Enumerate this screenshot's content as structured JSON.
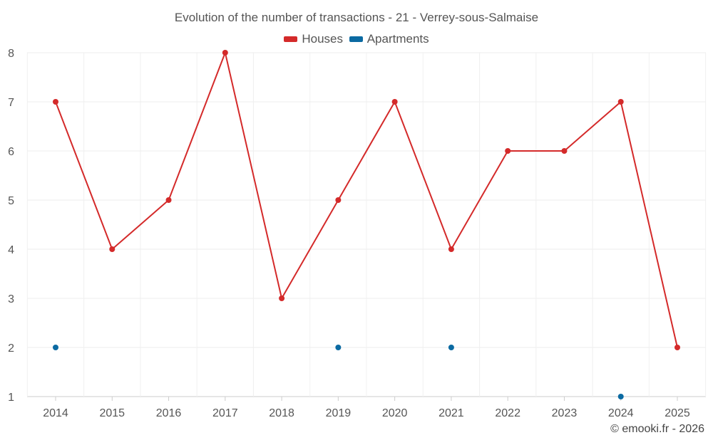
{
  "chart_data": {
    "type": "line",
    "title": "Evolution of the number of transactions - 21 - Verrey-sous-Salmaise",
    "xlabel": "",
    "ylabel": "",
    "ylim": [
      1,
      8
    ],
    "yticks": [
      "1",
      "2",
      "3",
      "4",
      "5",
      "6",
      "7",
      "8"
    ],
    "categories": [
      "2014",
      "2015",
      "2016",
      "2017",
      "2018",
      "2019",
      "2020",
      "2021",
      "2022",
      "2023",
      "2024",
      "2025"
    ],
    "grid": true,
    "legend_position": "top-center",
    "series": [
      {
        "name": "Houses",
        "color": "#d42a2a",
        "line": true,
        "values": [
          7,
          4,
          5,
          8,
          3,
          5,
          7,
          4,
          6,
          6,
          7,
          2
        ]
      },
      {
        "name": "Apartments",
        "color": "#0b6aa2",
        "line": false,
        "values": [
          2,
          null,
          null,
          null,
          null,
          2,
          null,
          2,
          null,
          null,
          1,
          null
        ]
      }
    ]
  },
  "credit": "© emooki.fr - 2026"
}
